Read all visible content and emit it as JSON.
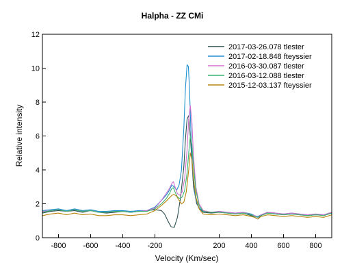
{
  "chart_data": {
    "type": "line",
    "title": "Halpha - ZZ CMi",
    "xlabel": "Velocity (Km/sec)",
    "ylabel": "Relative intensity",
    "xlim": [
      -900,
      900
    ],
    "ylim": [
      0,
      12
    ],
    "xticks": [
      -800,
      -600,
      -400,
      -200,
      200,
      400,
      600,
      800
    ],
    "yticks": [
      0,
      2,
      4,
      6,
      8,
      10,
      12
    ],
    "grid": false,
    "legend_position": "top-right",
    "series": [
      {
        "name": "2017-03-26.078  tlester",
        "color": "#2f4f4f",
        "points": [
          [
            -900,
            1.45
          ],
          [
            -850,
            1.55
          ],
          [
            -800,
            1.6
          ],
          [
            -750,
            1.55
          ],
          [
            -700,
            1.6
          ],
          [
            -650,
            1.5
          ],
          [
            -600,
            1.6
          ],
          [
            -550,
            1.5
          ],
          [
            -500,
            1.45
          ],
          [
            -450,
            1.5
          ],
          [
            -400,
            1.55
          ],
          [
            -350,
            1.5
          ],
          [
            -300,
            1.55
          ],
          [
            -250,
            1.6
          ],
          [
            -200,
            1.65
          ],
          [
            -160,
            1.6
          ],
          [
            -140,
            1.4
          ],
          [
            -120,
            1.0
          ],
          [
            -100,
            0.65
          ],
          [
            -80,
            0.6
          ],
          [
            -60,
            1.2
          ],
          [
            -40,
            2.4
          ],
          [
            -20,
            4.2
          ],
          [
            -10,
            5.8
          ],
          [
            0,
            7.0
          ],
          [
            10,
            7.2
          ],
          [
            20,
            6.0
          ],
          [
            30,
            4.5
          ],
          [
            40,
            3.0
          ],
          [
            60,
            2.0
          ],
          [
            80,
            1.7
          ],
          [
            100,
            1.5
          ],
          [
            150,
            1.45
          ],
          [
            200,
            1.5
          ],
          [
            250,
            1.45
          ],
          [
            300,
            1.4
          ],
          [
            350,
            1.45
          ],
          [
            400,
            1.3
          ],
          [
            420,
            1.2
          ],
          [
            440,
            1.1
          ],
          [
            460,
            1.3
          ],
          [
            500,
            1.45
          ],
          [
            550,
            1.4
          ],
          [
            600,
            1.35
          ],
          [
            650,
            1.4
          ],
          [
            700,
            1.35
          ],
          [
            750,
            1.3
          ],
          [
            800,
            1.35
          ],
          [
            850,
            1.35
          ],
          [
            900,
            1.45
          ]
        ]
      },
      {
        "name": "2017-02-18.848  fteyssier",
        "color": "#1f8ecf",
        "points": [
          [
            -900,
            1.6
          ],
          [
            -850,
            1.65
          ],
          [
            -800,
            1.7
          ],
          [
            -750,
            1.6
          ],
          [
            -700,
            1.7
          ],
          [
            -650,
            1.6
          ],
          [
            -600,
            1.65
          ],
          [
            -550,
            1.55
          ],
          [
            -500,
            1.55
          ],
          [
            -450,
            1.6
          ],
          [
            -400,
            1.6
          ],
          [
            -350,
            1.55
          ],
          [
            -300,
            1.6
          ],
          [
            -250,
            1.6
          ],
          [
            -200,
            1.8
          ],
          [
            -160,
            2.2
          ],
          [
            -130,
            2.5
          ],
          [
            -110,
            2.8
          ],
          [
            -95,
            3.1
          ],
          [
            -80,
            3.0
          ],
          [
            -65,
            2.8
          ],
          [
            -50,
            3.1
          ],
          [
            -35,
            4.0
          ],
          [
            -20,
            6.5
          ],
          [
            -10,
            8.8
          ],
          [
            0,
            10.2
          ],
          [
            8,
            10.1
          ],
          [
            15,
            8.8
          ],
          [
            25,
            6.0
          ],
          [
            35,
            4.0
          ],
          [
            50,
            2.5
          ],
          [
            70,
            1.8
          ],
          [
            100,
            1.55
          ],
          [
            150,
            1.5
          ],
          [
            200,
            1.55
          ],
          [
            250,
            1.5
          ],
          [
            300,
            1.45
          ],
          [
            350,
            1.5
          ],
          [
            400,
            1.4
          ],
          [
            420,
            1.3
          ],
          [
            440,
            1.25
          ],
          [
            460,
            1.35
          ],
          [
            500,
            1.5
          ],
          [
            550,
            1.45
          ],
          [
            600,
            1.4
          ],
          [
            650,
            1.45
          ],
          [
            700,
            1.4
          ],
          [
            750,
            1.35
          ],
          [
            800,
            1.4
          ],
          [
            850,
            1.35
          ],
          [
            900,
            1.5
          ]
        ]
      },
      {
        "name": "2016-03-30.087  tlester",
        "color": "#d070d0",
        "points": [
          [
            -900,
            1.55
          ],
          [
            -850,
            1.6
          ],
          [
            -800,
            1.65
          ],
          [
            -750,
            1.55
          ],
          [
            -700,
            1.65
          ],
          [
            -650,
            1.55
          ],
          [
            -600,
            1.6
          ],
          [
            -550,
            1.5
          ],
          [
            -500,
            1.5
          ],
          [
            -450,
            1.55
          ],
          [
            -400,
            1.55
          ],
          [
            -350,
            1.5
          ],
          [
            -300,
            1.55
          ],
          [
            -250,
            1.6
          ],
          [
            -200,
            1.75
          ],
          [
            -160,
            2.2
          ],
          [
            -130,
            2.6
          ],
          [
            -110,
            2.9
          ],
          [
            -95,
            3.2
          ],
          [
            -85,
            3.3
          ],
          [
            -75,
            3.0
          ],
          [
            -60,
            2.6
          ],
          [
            -45,
            2.5
          ],
          [
            -30,
            2.7
          ],
          [
            -15,
            3.5
          ],
          [
            0,
            5.2
          ],
          [
            10,
            7.0
          ],
          [
            20,
            7.8
          ],
          [
            30,
            6.8
          ],
          [
            40,
            4.8
          ],
          [
            55,
            3.0
          ],
          [
            75,
            2.0
          ],
          [
            100,
            1.6
          ],
          [
            150,
            1.5
          ],
          [
            200,
            1.55
          ],
          [
            250,
            1.5
          ],
          [
            300,
            1.45
          ],
          [
            350,
            1.5
          ],
          [
            400,
            1.35
          ],
          [
            420,
            1.3
          ],
          [
            440,
            1.2
          ],
          [
            460,
            1.35
          ],
          [
            500,
            1.5
          ],
          [
            550,
            1.45
          ],
          [
            600,
            1.4
          ],
          [
            650,
            1.45
          ],
          [
            700,
            1.4
          ],
          [
            750,
            1.35
          ],
          [
            800,
            1.4
          ],
          [
            850,
            1.35
          ],
          [
            900,
            1.5
          ]
        ]
      },
      {
        "name": "2016-03-12.088  tlester",
        "color": "#3cb371",
        "points": [
          [
            -900,
            1.5
          ],
          [
            -850,
            1.6
          ],
          [
            -800,
            1.65
          ],
          [
            -750,
            1.55
          ],
          [
            -700,
            1.65
          ],
          [
            -650,
            1.55
          ],
          [
            -600,
            1.6
          ],
          [
            -550,
            1.5
          ],
          [
            -500,
            1.5
          ],
          [
            -450,
            1.55
          ],
          [
            -400,
            1.55
          ],
          [
            -350,
            1.5
          ],
          [
            -300,
            1.55
          ],
          [
            -250,
            1.55
          ],
          [
            -200,
            1.7
          ],
          [
            -160,
            2.0
          ],
          [
            -130,
            2.3
          ],
          [
            -110,
            2.6
          ],
          [
            -95,
            2.9
          ],
          [
            -85,
            2.95
          ],
          [
            -75,
            2.7
          ],
          [
            -60,
            2.4
          ],
          [
            -45,
            2.3
          ],
          [
            -30,
            2.4
          ],
          [
            -15,
            2.8
          ],
          [
            0,
            3.8
          ],
          [
            10,
            5.0
          ],
          [
            20,
            6.0
          ],
          [
            30,
            5.5
          ],
          [
            40,
            4.2
          ],
          [
            55,
            2.8
          ],
          [
            75,
            1.9
          ],
          [
            100,
            1.55
          ],
          [
            150,
            1.5
          ],
          [
            200,
            1.5
          ],
          [
            250,
            1.45
          ],
          [
            300,
            1.4
          ],
          [
            350,
            1.45
          ],
          [
            400,
            1.35
          ],
          [
            420,
            1.25
          ],
          [
            440,
            1.2
          ],
          [
            460,
            1.3
          ],
          [
            500,
            1.45
          ],
          [
            550,
            1.4
          ],
          [
            600,
            1.35
          ],
          [
            650,
            1.4
          ],
          [
            700,
            1.35
          ],
          [
            750,
            1.3
          ],
          [
            800,
            1.35
          ],
          [
            850,
            1.3
          ],
          [
            900,
            1.45
          ]
        ]
      },
      {
        "name": "2015-12-03.137  fteyssier",
        "color": "#b8860b",
        "points": [
          [
            -900,
            1.3
          ],
          [
            -850,
            1.4
          ],
          [
            -800,
            1.45
          ],
          [
            -750,
            1.35
          ],
          [
            -700,
            1.45
          ],
          [
            -650,
            1.35
          ],
          [
            -600,
            1.4
          ],
          [
            -550,
            1.3
          ],
          [
            -500,
            1.3
          ],
          [
            -450,
            1.35
          ],
          [
            -400,
            1.35
          ],
          [
            -350,
            1.3
          ],
          [
            -300,
            1.35
          ],
          [
            -250,
            1.4
          ],
          [
            -200,
            1.6
          ],
          [
            -160,
            1.9
          ],
          [
            -130,
            2.15
          ],
          [
            -110,
            2.35
          ],
          [
            -95,
            2.5
          ],
          [
            -80,
            2.55
          ],
          [
            -65,
            2.45
          ],
          [
            -50,
            2.2
          ],
          [
            -35,
            2.0
          ],
          [
            -20,
            2.1
          ],
          [
            -5,
            2.7
          ],
          [
            10,
            4.0
          ],
          [
            20,
            5.0
          ],
          [
            30,
            4.6
          ],
          [
            40,
            3.5
          ],
          [
            55,
            2.4
          ],
          [
            75,
            1.7
          ],
          [
            100,
            1.4
          ],
          [
            150,
            1.35
          ],
          [
            200,
            1.4
          ],
          [
            250,
            1.35
          ],
          [
            300,
            1.3
          ],
          [
            350,
            1.35
          ],
          [
            400,
            1.25
          ],
          [
            420,
            1.2
          ],
          [
            440,
            1.1
          ],
          [
            460,
            1.25
          ],
          [
            500,
            1.35
          ],
          [
            550,
            1.3
          ],
          [
            600,
            1.25
          ],
          [
            650,
            1.3
          ],
          [
            700,
            1.25
          ],
          [
            750,
            1.2
          ],
          [
            800,
            1.25
          ],
          [
            850,
            1.2
          ],
          [
            900,
            1.35
          ]
        ]
      }
    ]
  }
}
